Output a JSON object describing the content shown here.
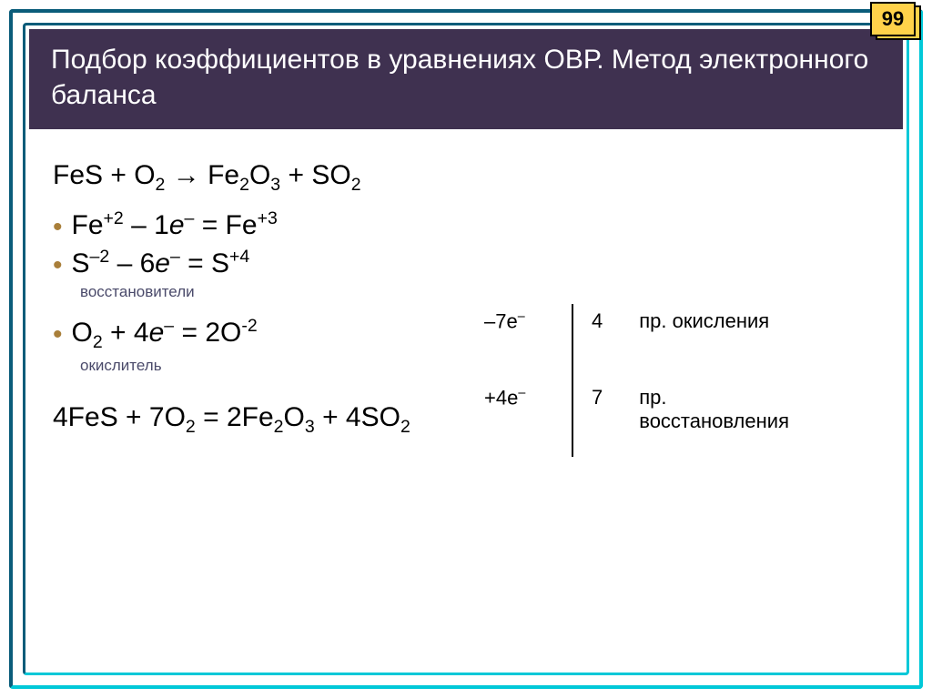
{
  "page_number": "99",
  "title": "Подбор коэффициентов в уравнениях ОВР. Метод электронного баланса",
  "main_equation": "FeS + O₂ → Fe₂O₃ + SO₂",
  "main_equation_parts": {
    "r1": "FeS + O",
    "r1_sub": "2",
    "arrow": " → ",
    "p1": "Fe",
    "p1_sub": "2",
    "p2": "O",
    "p2_sub": "3",
    "plus": " + SO",
    "p3_sub": "2"
  },
  "half_reactions": [
    {
      "lhs": "Fe",
      "lhs_sup": "+2",
      "op": " – 1",
      "e": "e",
      "e_sup": "–",
      "eq": " = Fe",
      "rhs_sup": "+3"
    },
    {
      "lhs": "S",
      "lhs_sup": "–2",
      "op": " – 6",
      "e": "e",
      "e_sup": "–",
      "eq": " = S",
      "rhs_sup": "+4"
    },
    {
      "lhs": "O",
      "lhs_sub": "2",
      "op": " + 4",
      "e": "e",
      "e_sup": "–",
      "eq": " = 2O",
      "rhs_sup": "-2"
    }
  ],
  "labels": {
    "reducers": "восстановители",
    "oxidizer": "окислитель"
  },
  "balance": {
    "row1_e": "–7e",
    "row1_e_sup": "–",
    "row1_coef": "4",
    "row1_proc": "пр. окисления",
    "row2_e": "+4e",
    "row2_e_sup": "–",
    "row2_coef": "7",
    "row2_proc": "пр. восстановления"
  },
  "final_equation": {
    "c1": "4FeS + 7O",
    "s1": "2",
    "eq": " = 2Fe",
    "s2": "2",
    "p2": "O",
    "s3": "3",
    "plus": " + 4SO",
    "s4": "2"
  },
  "colors": {
    "title_bg": "#3f3150",
    "title_fg": "#ffffff",
    "bullet": "#a97f3a",
    "sublabel": "#4a4a6a",
    "badge_bg": "#ffd24a",
    "frame_dark": "#0a5c7a",
    "frame_light": "#00c8d8"
  }
}
